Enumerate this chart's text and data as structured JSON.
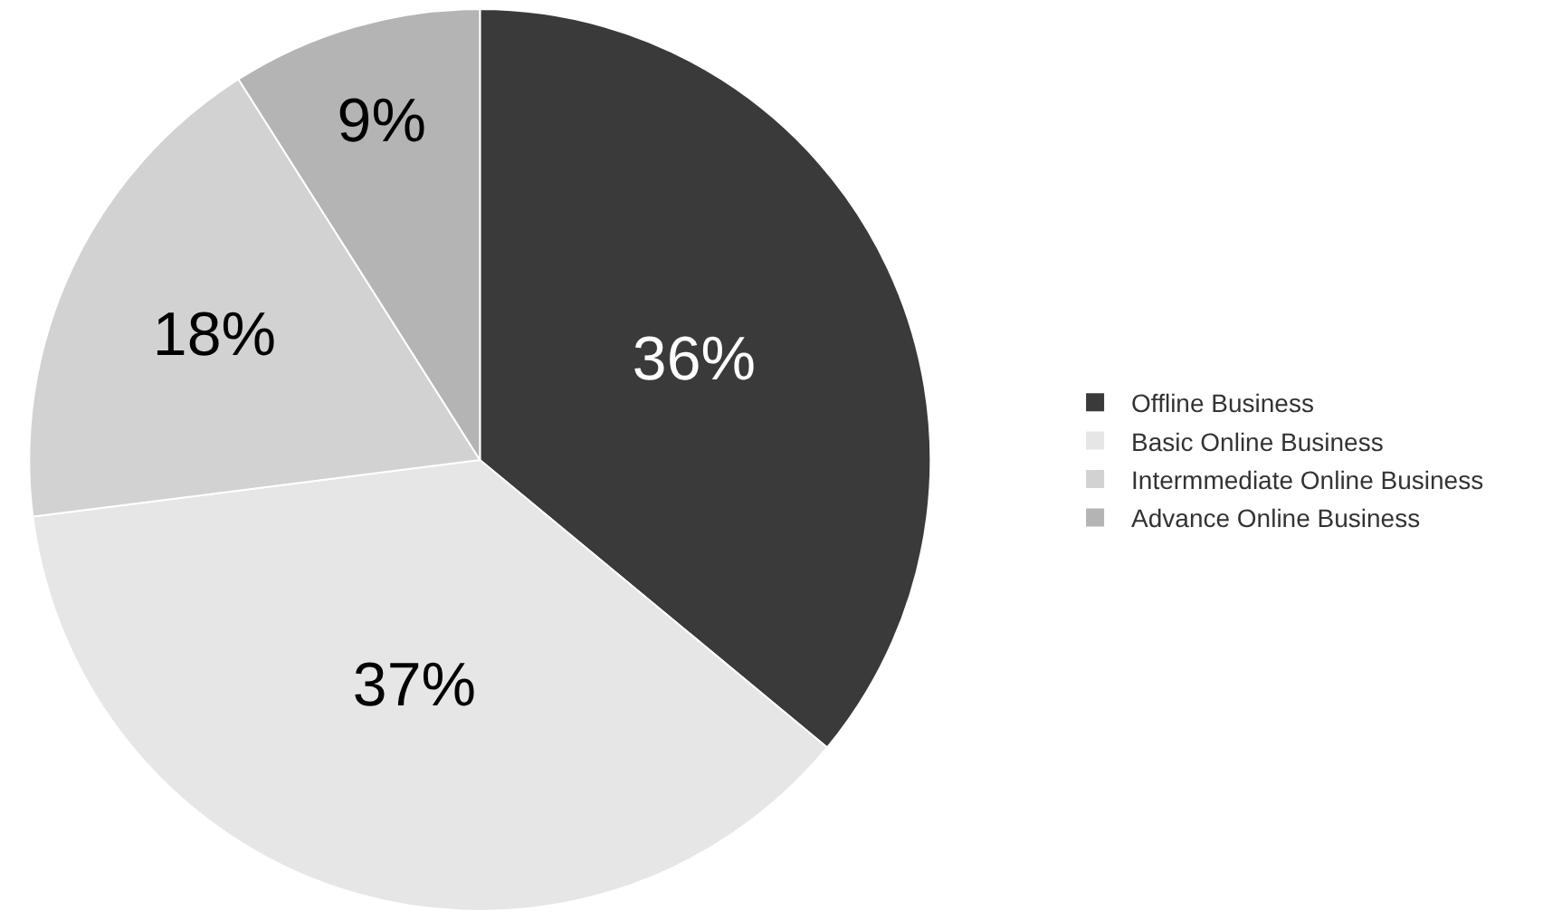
{
  "chart_data": {
    "type": "pie",
    "categories": [
      "Offline Business",
      "Basic Online Business",
      "Intermmediate Online Business",
      "Advance Online Business"
    ],
    "values": [
      36,
      37,
      18,
      9
    ],
    "value_labels": [
      "36%",
      "37%",
      "18%",
      "9%"
    ],
    "colors": [
      "#3a3a3a",
      "#e6e6e6",
      "#d2d2d2",
      "#b4b4b4"
    ],
    "legend": "right"
  }
}
